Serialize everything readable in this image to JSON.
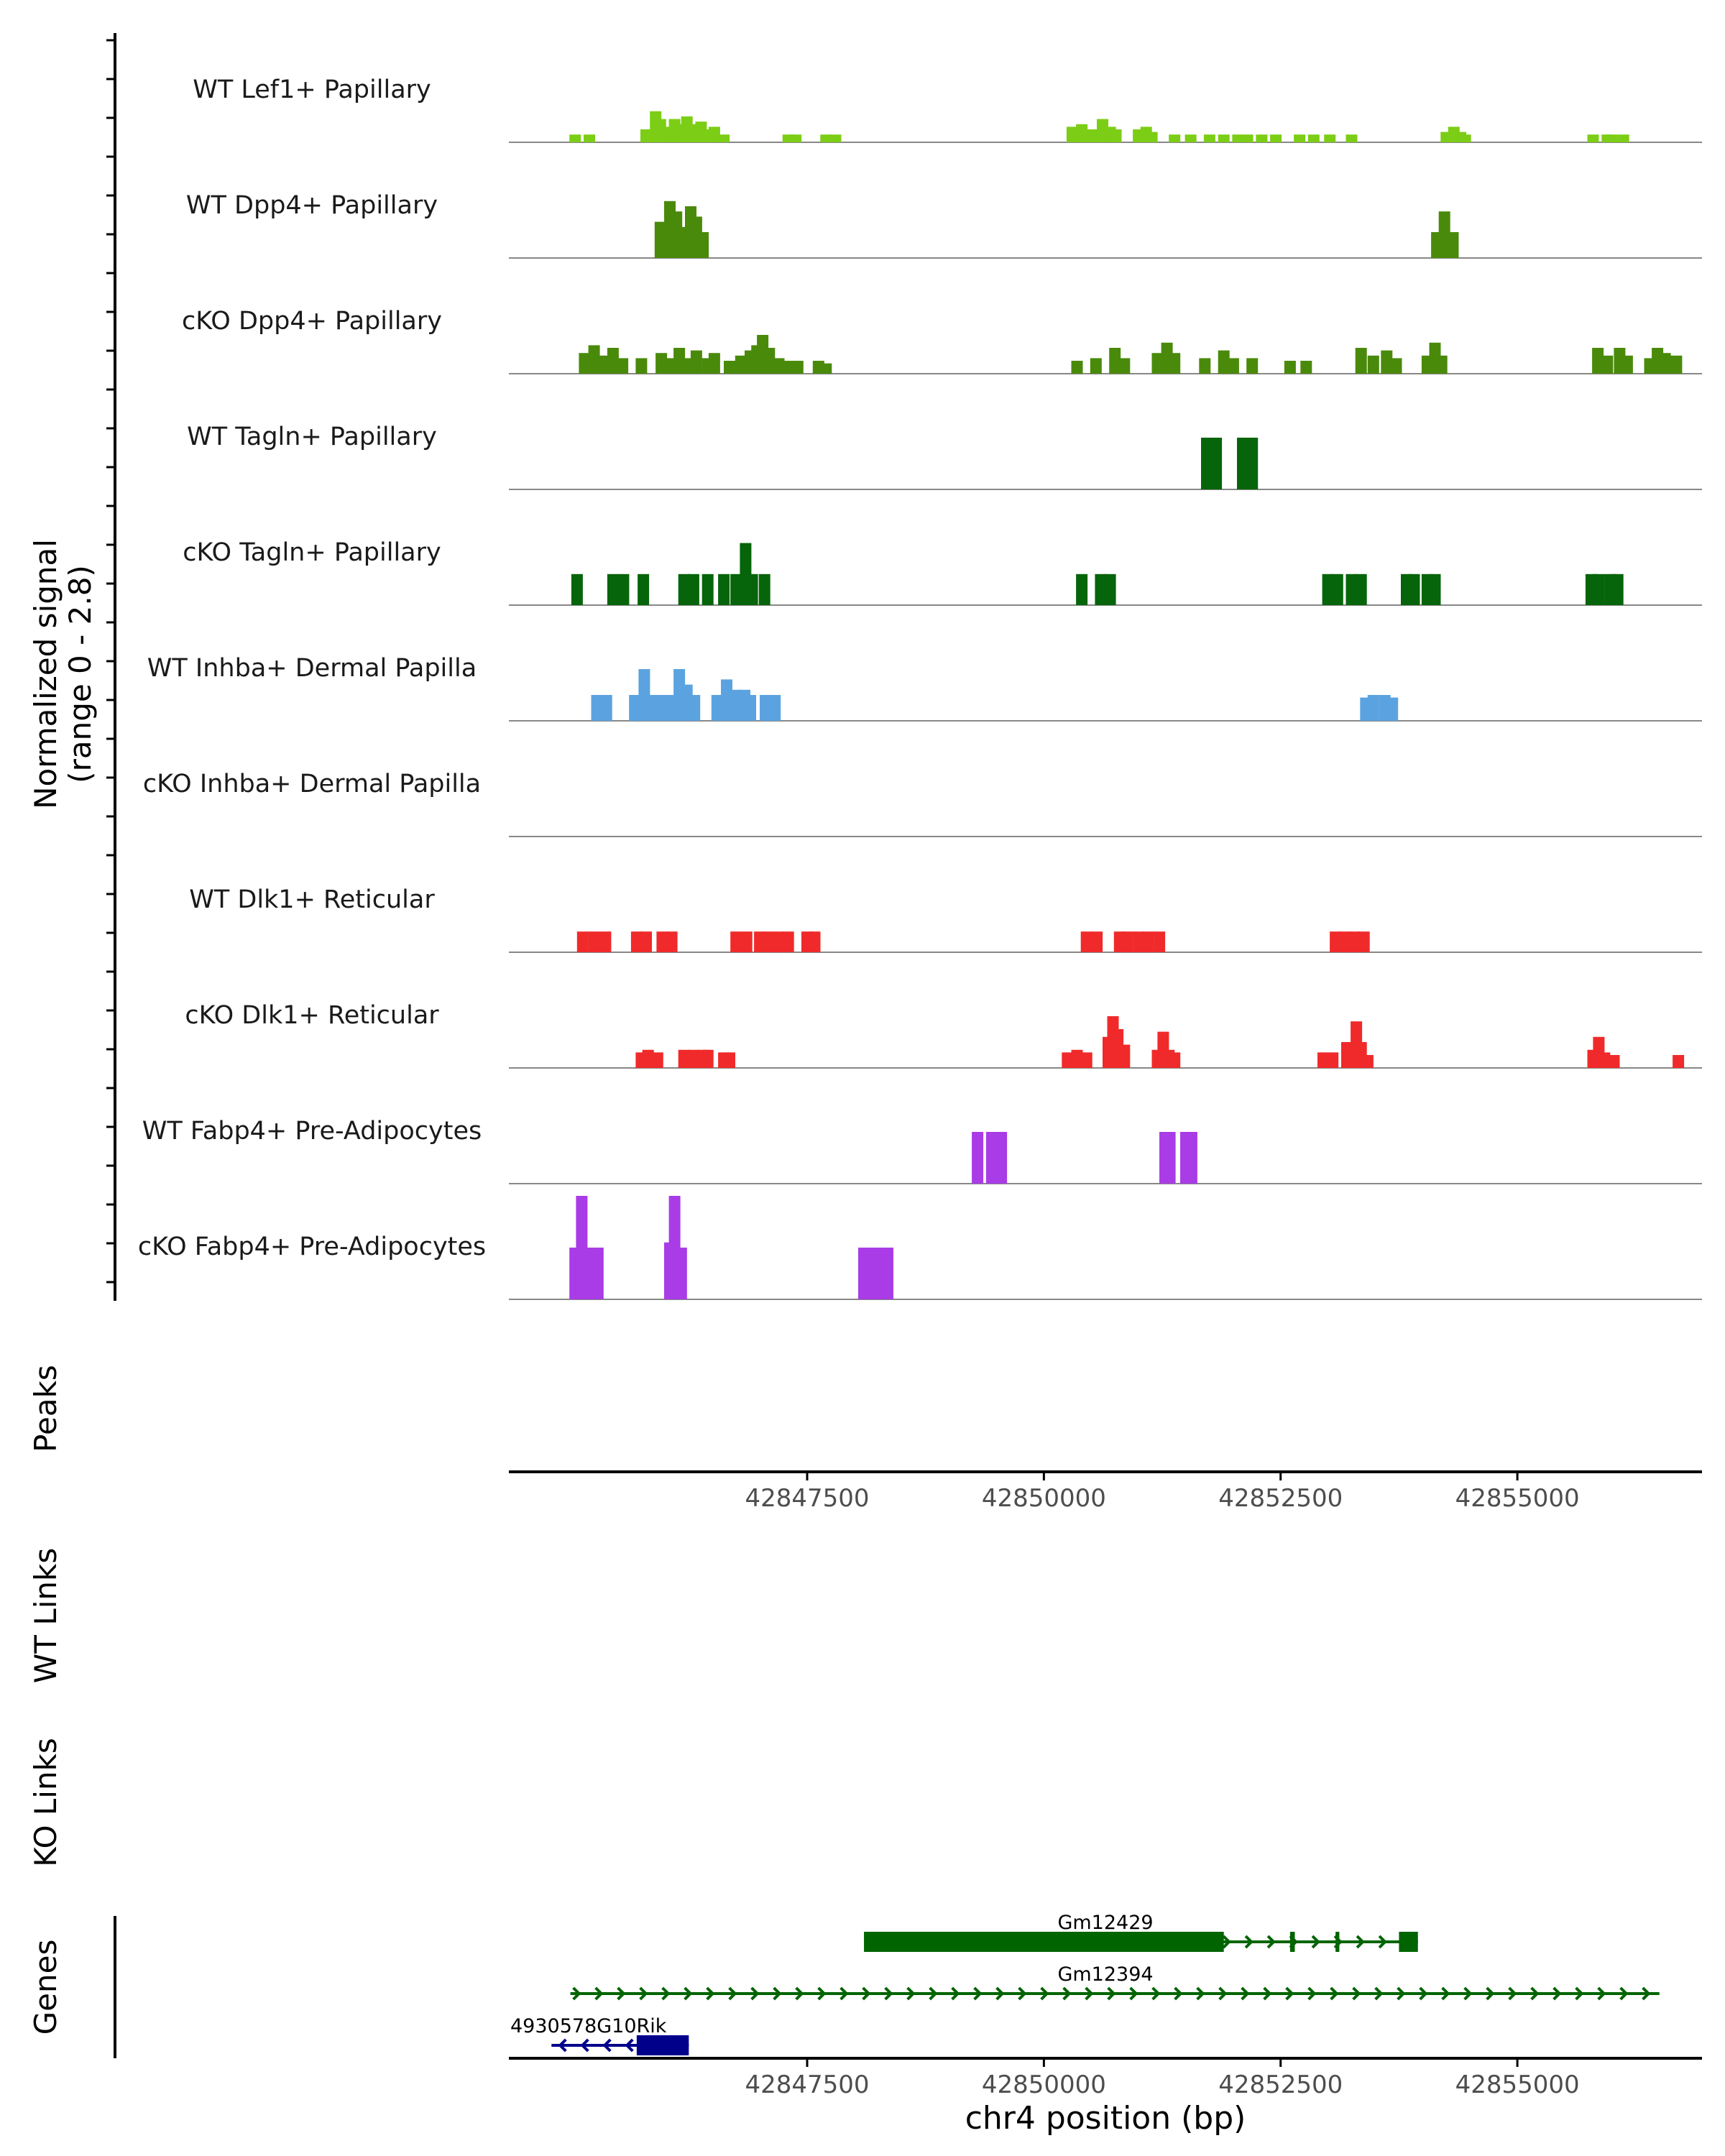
{
  "colors": {
    "lef1": "#7ccd15",
    "dpp4": "#4a8a0b",
    "tagln": "#06650a",
    "inhba": "#5ba3e0",
    "dlk1": "#f02a2a",
    "fabp4": "#a93ce6",
    "gene_green": "#006400",
    "gene_navy": "#00008b",
    "axis": "#000000",
    "baseline": "#888888",
    "tick_text": "#4d4d4d"
  },
  "chart_data": {
    "type": "area",
    "title": "",
    "region": {
      "chrom": "chr4",
      "start": 42844350,
      "end": 42856950
    },
    "coverage_ylabel": "Normalized signal\n(range 0 - 2.8)",
    "ylim": [
      0,
      2.8
    ],
    "xlabel": "chr4 position (bp)",
    "x_ticks": [
      42847500,
      42850000,
      42852500,
      42855000
    ],
    "x_tick_labels": [
      "42847500",
      "42850000",
      "42852500",
      "42855000"
    ],
    "peaks_label": "Peaks",
    "wt_links_label": "WT Links",
    "ko_links_label": "KO Links",
    "genes_label": "Genes",
    "tracks": [
      {
        "name": "WT Lef1+ Papillary",
        "color_key": "lef1",
        "points": [
          [
            42845050,
            0.3
          ],
          [
            42845200,
            0.3
          ],
          [
            42845800,
            0.5
          ],
          [
            42845900,
            1.2
          ],
          [
            42845950,
            0.9
          ],
          [
            42846020,
            0.6
          ],
          [
            42846100,
            0.9
          ],
          [
            42846150,
            0.7
          ],
          [
            42846230,
            1.0
          ],
          [
            42846300,
            0.7
          ],
          [
            42846380,
            0.8
          ],
          [
            42846440,
            0.5
          ],
          [
            42846520,
            0.6
          ],
          [
            42846620,
            0.3
          ],
          [
            42847300,
            0.3
          ],
          [
            42847380,
            0.3
          ],
          [
            42847700,
            0.3
          ],
          [
            42847800,
            0.3
          ],
          [
            42850300,
            0.6
          ],
          [
            42850400,
            0.7
          ],
          [
            42850500,
            0.5
          ],
          [
            42850620,
            0.9
          ],
          [
            42850700,
            0.6
          ],
          [
            42850760,
            0.5
          ],
          [
            42851000,
            0.5
          ],
          [
            42851080,
            0.6
          ],
          [
            42851140,
            0.4
          ],
          [
            42851380,
            0.3
          ],
          [
            42851550,
            0.3
          ],
          [
            42851750,
            0.3
          ],
          [
            42851900,
            0.3
          ],
          [
            42852050,
            0.3
          ],
          [
            42852150,
            0.3
          ],
          [
            42852300,
            0.3
          ],
          [
            42852450,
            0.3
          ],
          [
            42852700,
            0.3
          ],
          [
            42852850,
            0.3
          ],
          [
            42853020,
            0.3
          ],
          [
            42853250,
            0.3
          ],
          [
            42854250,
            0.4
          ],
          [
            42854330,
            0.6
          ],
          [
            42854400,
            0.4
          ],
          [
            42854450,
            0.3
          ],
          [
            42855800,
            0.3
          ],
          [
            42855950,
            0.3
          ],
          [
            42856000,
            0.3
          ],
          [
            42856120,
            0.3
          ]
        ]
      },
      {
        "name": "WT Dpp4+ Papillary",
        "color_key": "dpp4",
        "points": [
          [
            42845950,
            1.4
          ],
          [
            42846050,
            2.2
          ],
          [
            42846120,
            1.8
          ],
          [
            42846200,
            1.2
          ],
          [
            42846270,
            2.0
          ],
          [
            42846330,
            1.6
          ],
          [
            42846400,
            1.0
          ],
          [
            42854150,
            1.0
          ],
          [
            42854230,
            1.8
          ],
          [
            42854270,
            1.0
          ],
          [
            42854320,
            1.0
          ]
        ]
      },
      {
        "name": "cKO Dpp4+ Papillary",
        "color_key": "dpp4",
        "points": [
          [
            42845150,
            0.8
          ],
          [
            42845250,
            1.1
          ],
          [
            42845350,
            0.7
          ],
          [
            42845450,
            1.0
          ],
          [
            42845550,
            0.6
          ],
          [
            42845750,
            0.6
          ],
          [
            42845960,
            0.8
          ],
          [
            42846050,
            0.6
          ],
          [
            42846150,
            1.0
          ],
          [
            42846250,
            0.6
          ],
          [
            42846330,
            0.9
          ],
          [
            42846450,
            0.6
          ],
          [
            42846520,
            0.8
          ],
          [
            42846680,
            0.5
          ],
          [
            42846800,
            0.7
          ],
          [
            42846900,
            0.9
          ],
          [
            42846970,
            1.1
          ],
          [
            42847030,
            1.5
          ],
          [
            42847100,
            1.0
          ],
          [
            42847200,
            0.6
          ],
          [
            42847300,
            0.5
          ],
          [
            42847400,
            0.5
          ],
          [
            42847620,
            0.5
          ],
          [
            42847700,
            0.4
          ],
          [
            42850350,
            0.5
          ],
          [
            42850550,
            0.6
          ],
          [
            42850750,
            1.0
          ],
          [
            42850850,
            0.6
          ],
          [
            42851200,
            0.8
          ],
          [
            42851300,
            1.2
          ],
          [
            42851380,
            0.8
          ],
          [
            42851700,
            0.6
          ],
          [
            42851900,
            0.9
          ],
          [
            42852000,
            0.6
          ],
          [
            42852200,
            0.6
          ],
          [
            42852600,
            0.5
          ],
          [
            42852770,
            0.5
          ],
          [
            42853350,
            1.0
          ],
          [
            42853480,
            0.7
          ],
          [
            42853620,
            0.9
          ],
          [
            42853720,
            0.6
          ],
          [
            42854050,
            0.7
          ],
          [
            42854130,
            1.2
          ],
          [
            42854200,
            0.7
          ],
          [
            42855850,
            1.0
          ],
          [
            42855950,
            0.7
          ],
          [
            42856080,
            1.0
          ],
          [
            42856160,
            0.7
          ],
          [
            42856400,
            0.6
          ],
          [
            42856480,
            1.0
          ],
          [
            42856560,
            0.8
          ],
          [
            42856680,
            0.7
          ]
        ]
      },
      {
        "name": "WT Tagln+ Papillary",
        "color_key": "tagln",
        "points": [
          [
            42851720,
            2.0
          ],
          [
            42851820,
            2.0
          ],
          [
            42852100,
            2.0
          ],
          [
            42852200,
            2.0
          ]
        ]
      },
      {
        "name": "cKO Tagln+ Papillary",
        "color_key": "tagln",
        "points": [
          [
            42845070,
            1.2
          ],
          [
            42845450,
            1.2
          ],
          [
            42845560,
            1.2
          ],
          [
            42845770,
            1.2
          ],
          [
            42846200,
            1.2
          ],
          [
            42846300,
            1.2
          ],
          [
            42846450,
            1.2
          ],
          [
            42846620,
            1.2
          ],
          [
            42846750,
            1.2
          ],
          [
            42846850,
            2.4
          ],
          [
            42846920,
            1.2
          ],
          [
            42847050,
            1.2
          ],
          [
            42850400,
            1.2
          ],
          [
            42850600,
            1.2
          ],
          [
            42850700,
            1.2
          ],
          [
            42853000,
            1.2
          ],
          [
            42853100,
            1.2
          ],
          [
            42853250,
            1.2
          ],
          [
            42853350,
            1.2
          ],
          [
            42853830,
            1.2
          ],
          [
            42853910,
            1.2
          ],
          [
            42854050,
            1.2
          ],
          [
            42854130,
            1.2
          ],
          [
            42855780,
            1.2
          ],
          [
            42855860,
            1.2
          ],
          [
            42855980,
            1.2
          ],
          [
            42856060,
            1.2
          ]
        ]
      },
      {
        "name": "WT Inhba+ Dermal Papilla",
        "color_key": "inhba",
        "points": [
          [
            42845280,
            1.0
          ],
          [
            42845380,
            1.0
          ],
          [
            42845680,
            1.0
          ],
          [
            42845780,
            2.0
          ],
          [
            42845870,
            1.0
          ],
          [
            42845980,
            1.0
          ],
          [
            42846050,
            1.0
          ],
          [
            42846150,
            2.0
          ],
          [
            42846230,
            1.4
          ],
          [
            42846310,
            1.0
          ],
          [
            42846550,
            1.0
          ],
          [
            42846650,
            1.6
          ],
          [
            42846740,
            1.2
          ],
          [
            42846840,
            1.2
          ],
          [
            42846900,
            1.0
          ],
          [
            42847060,
            1.0
          ],
          [
            42847160,
            1.0
          ],
          [
            42853400,
            0.9
          ],
          [
            42853480,
            1.0
          ],
          [
            42853600,
            1.0
          ],
          [
            42853680,
            0.9
          ]
        ]
      },
      {
        "name": "cKO Inhba+ Dermal Papilla",
        "color_key": "inhba",
        "points": []
      },
      {
        "name": "WT Dlk1+ Reticular",
        "color_key": "dlk1",
        "points": [
          [
            42845130,
            0.8
          ],
          [
            42845250,
            0.8
          ],
          [
            42845370,
            0.8
          ],
          [
            42845700,
            0.8
          ],
          [
            42845800,
            0.8
          ],
          [
            42845970,
            0.8
          ],
          [
            42846070,
            0.8
          ],
          [
            42846750,
            0.8
          ],
          [
            42846860,
            0.8
          ],
          [
            42847000,
            0.8
          ],
          [
            42847090,
            0.8
          ],
          [
            42847200,
            0.8
          ],
          [
            42847300,
            0.8
          ],
          [
            42847500,
            0.8
          ],
          [
            42847580,
            0.8
          ],
          [
            42850450,
            0.8
          ],
          [
            42850560,
            0.8
          ],
          [
            42850800,
            0.8
          ],
          [
            42850880,
            0.8
          ],
          [
            42851000,
            0.8
          ],
          [
            42851100,
            0.8
          ],
          [
            42851220,
            0.8
          ],
          [
            42853080,
            0.8
          ],
          [
            42853180,
            0.8
          ],
          [
            42853280,
            0.8
          ],
          [
            42853380,
            0.8
          ]
        ]
      },
      {
        "name": "cKO Dlk1+ Reticular",
        "color_key": "dlk1",
        "points": [
          [
            42845750,
            0.6
          ],
          [
            42845820,
            0.7
          ],
          [
            42845920,
            0.6
          ],
          [
            42846200,
            0.7
          ],
          [
            42846300,
            0.7
          ],
          [
            42846400,
            0.7
          ],
          [
            42846450,
            0.7
          ],
          [
            42846620,
            0.6
          ],
          [
            42846680,
            0.6
          ],
          [
            42850250,
            0.6
          ],
          [
            42850350,
            0.7
          ],
          [
            42850450,
            0.6
          ],
          [
            42850680,
            1.2
          ],
          [
            42850730,
            2.0
          ],
          [
            42850780,
            1.5
          ],
          [
            42850850,
            0.9
          ],
          [
            42851200,
            0.7
          ],
          [
            42851260,
            1.4
          ],
          [
            42851320,
            0.7
          ],
          [
            42851380,
            0.6
          ],
          [
            42852950,
            0.6
          ],
          [
            42853050,
            0.6
          ],
          [
            42853200,
            1.0
          ],
          [
            42853300,
            1.8
          ],
          [
            42853350,
            1.0
          ],
          [
            42853420,
            0.5
          ],
          [
            42855800,
            0.7
          ],
          [
            42855860,
            1.2
          ],
          [
            42855920,
            0.6
          ],
          [
            42856020,
            0.5
          ],
          [
            42856700,
            0.5
          ]
        ]
      },
      {
        "name": "WT Fabp4+ Pre-Adipocytes",
        "color_key": "fabp4",
        "points": [
          [
            42849300,
            2.0
          ],
          [
            42849450,
            2.0
          ],
          [
            42849550,
            2.0
          ],
          [
            42851280,
            2.0
          ],
          [
            42851330,
            2.0
          ],
          [
            42851500,
            2.0
          ],
          [
            42851560,
            2.0
          ]
        ]
      },
      {
        "name": "cKO Fabp4+ Pre-Adipocytes",
        "color_key": "fabp4",
        "points": [
          [
            42845050,
            2.0
          ],
          [
            42845120,
            4.0
          ],
          [
            42845200,
            2.0
          ],
          [
            42845290,
            2.0
          ],
          [
            42846050,
            2.2
          ],
          [
            42846100,
            4.0
          ],
          [
            42846170,
            2.0
          ],
          [
            42848100,
            2.0
          ],
          [
            42848180,
            2.0
          ],
          [
            42848250,
            2.0
          ],
          [
            42848350,
            2.0
          ]
        ]
      }
    ],
    "genes": [
      {
        "name": "Gm12429",
        "strand": "-",
        "start": 42848100,
        "end": 42853950,
        "exons": [
          [
            42848100,
            42851900
          ],
          [
            42852600,
            42852650
          ],
          [
            42853080,
            42853120
          ],
          [
            42853750,
            42853950
          ]
        ]
      },
      {
        "name": "Gm12394",
        "strand": "-",
        "start": 42845000,
        "end": 42856500,
        "exons": []
      },
      {
        "name": "4930578G10Rik",
        "strand": "+",
        "start": 42844800,
        "end": 42846250,
        "exons": [
          [
            42845700,
            42846250
          ]
        ]
      }
    ]
  }
}
